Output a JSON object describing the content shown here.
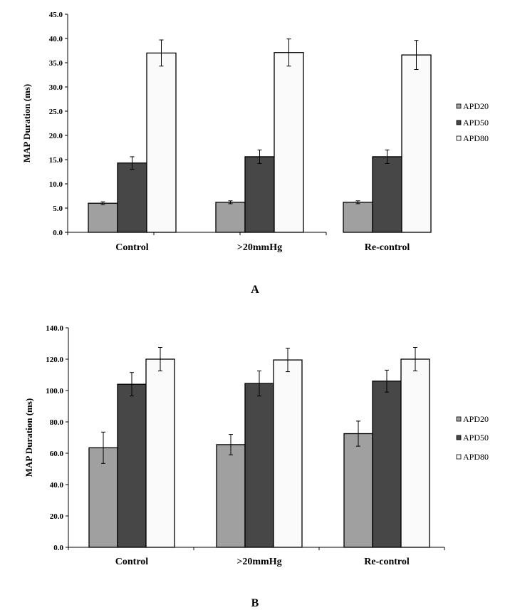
{
  "colors": {
    "APD20": "#a0a0a0",
    "APD50": "#474747",
    "APD80": "#fafafa"
  },
  "chart_data": [
    {
      "type": "bar",
      "panel_label": "A",
      "ylabel": "MAP Duration (ms)",
      "categories": [
        "Control",
        ">20mmHg",
        "Re-control"
      ],
      "ylim": [
        0,
        45
      ],
      "yticks": [
        0,
        5,
        10,
        15,
        20,
        25,
        30,
        35,
        40,
        45
      ],
      "ytick_labels": [
        "0.0",
        "5.0",
        "10.0",
        "15.0",
        "20.0",
        "25.0",
        "30.0",
        "35.0",
        "40.0",
        "45.0"
      ],
      "legend_position": "right",
      "series": [
        {
          "name": "APD20",
          "values": [
            6.0,
            6.2,
            6.2
          ],
          "errors": [
            0.3,
            0.3,
            0.3
          ]
        },
        {
          "name": "APD50",
          "values": [
            14.3,
            15.6,
            15.6
          ],
          "errors": [
            1.3,
            1.4,
            1.4
          ]
        },
        {
          "name": "APD80",
          "values": [
            37.0,
            37.1,
            36.6
          ],
          "errors": [
            2.7,
            2.8,
            3.0
          ]
        }
      ]
    },
    {
      "type": "bar",
      "panel_label": "B",
      "ylabel": "MAP Duration (ms)",
      "categories": [
        "Control",
        ">20mmHg",
        "Re-control"
      ],
      "ylim": [
        0,
        140
      ],
      "yticks": [
        0,
        20,
        40,
        60,
        80,
        100,
        120,
        140
      ],
      "ytick_labels": [
        "0.0",
        "20.0",
        "40.0",
        "60.0",
        "80.0",
        "100.0",
        "120.0",
        "140.0"
      ],
      "legend_position": "right",
      "series": [
        {
          "name": "APD20",
          "values": [
            63.5,
            65.5,
            72.5
          ],
          "errors": [
            10.0,
            6.5,
            8.0
          ]
        },
        {
          "name": "APD50",
          "values": [
            104.0,
            104.5,
            106.0
          ],
          "errors": [
            7.5,
            8.0,
            7.0
          ]
        },
        {
          "name": "APD80",
          "values": [
            120.0,
            119.5,
            120.0
          ],
          "errors": [
            7.5,
            7.5,
            7.5
          ]
        }
      ]
    }
  ]
}
